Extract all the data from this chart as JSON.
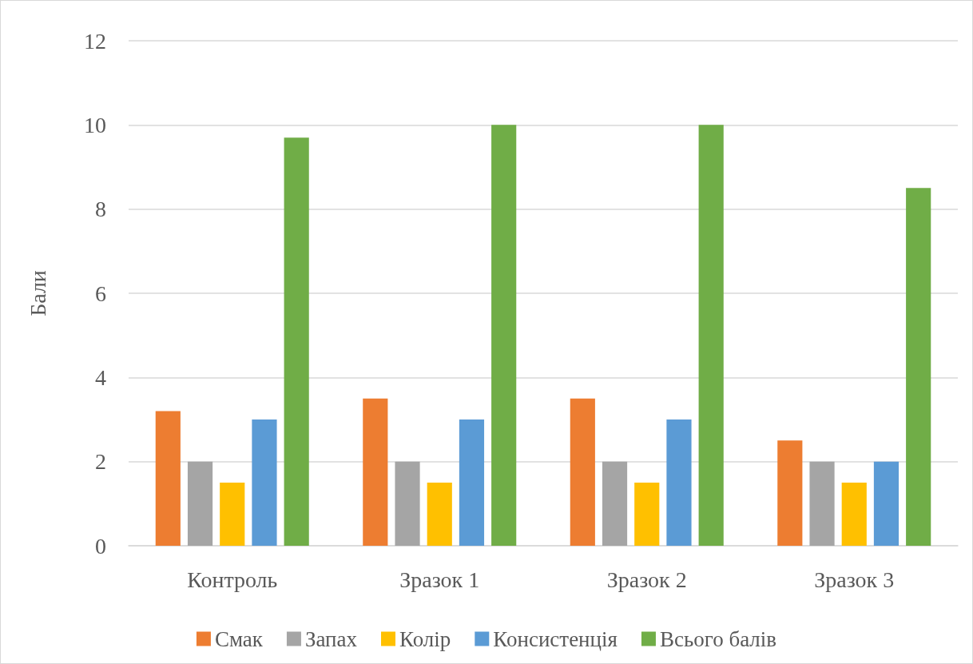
{
  "chart_data": {
    "type": "bar",
    "ylabel": "Бали",
    "categories": [
      "Контроль",
      "Зразок 1",
      "Зразок 2",
      "Зразок 3"
    ],
    "series": [
      {
        "name": "Смак",
        "color": "#ed7d31",
        "values": [
          3.2,
          3.5,
          3.5,
          2.5
        ]
      },
      {
        "name": "Запах",
        "color": "#a5a5a5",
        "values": [
          2,
          2,
          2,
          2
        ]
      },
      {
        "name": "Колір",
        "color": "#ffc000",
        "values": [
          1.5,
          1.5,
          1.5,
          1.5
        ]
      },
      {
        "name": "Консистенція",
        "color": "#5b9bd5",
        "values": [
          3,
          3,
          3,
          2
        ]
      },
      {
        "name": "Всього балів",
        "color": "#70ad47",
        "values": [
          9.7,
          10,
          10,
          8.5
        ]
      }
    ],
    "ylim": [
      0,
      12
    ],
    "yticks": [
      0,
      2,
      4,
      6,
      8,
      10,
      12
    ],
    "grid": "y",
    "legend": "bottom"
  }
}
